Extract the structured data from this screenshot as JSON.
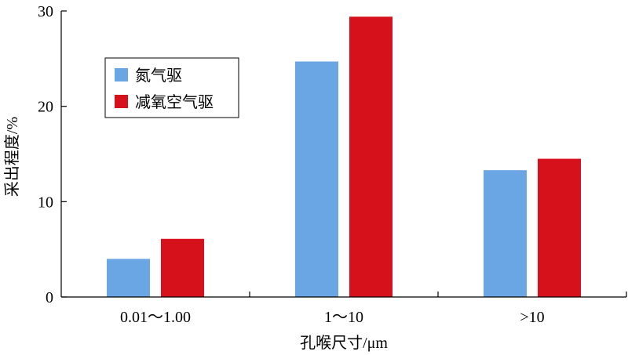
{
  "chart_data": {
    "type": "bar",
    "categories": [
      "0.01～1.00",
      "1～10",
      ">10"
    ],
    "series": [
      {
        "name": "氮气驱",
        "color": "#6aa6e3",
        "values": [
          4.0,
          24.7,
          13.3
        ]
      },
      {
        "name": "减氧空气驱",
        "color": "#d7111b",
        "values": [
          6.1,
          29.4,
          14.5
        ]
      }
    ],
    "xlabel": "孔喉尺寸/μm",
    "ylabel": "采出程度/%",
    "ylim": [
      0,
      30
    ],
    "yticks": [
      0,
      10,
      20,
      30
    ],
    "grid": false,
    "legend_position": "top-left"
  }
}
